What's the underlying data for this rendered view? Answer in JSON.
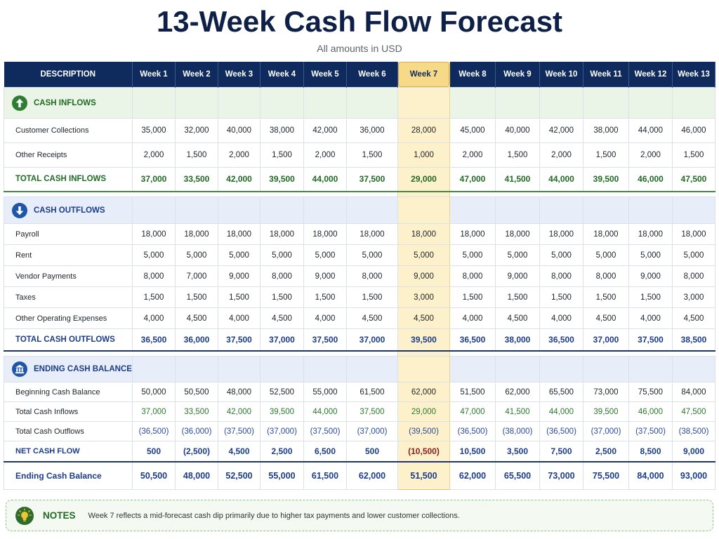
{
  "title": "13-Week Cash Flow Forecast",
  "subtitle": "All amounts in USD",
  "colors": {
    "title": "#0e2047",
    "header_bg": "#0f2a5c",
    "inflow": "#1f6b23",
    "outflow": "#1b3c8c",
    "inflow_section_bg": "#eaf4e7",
    "outflow_section_bg": "#e7eef9",
    "highlight": "#fcf1cb",
    "highlight_header": "#f6da88",
    "net_highlight": "#8b1d1d",
    "notes_border": "#8fc08a",
    "notes_bg": "#f4faf2"
  },
  "table": {
    "header": {
      "description": "DESCRIPTION",
      "weeks": [
        "Week 1",
        "Week 2",
        "Week 3",
        "Week 4",
        "Week 5",
        "Week 6",
        "Week 7",
        "Week 8",
        "Week 9",
        "Week 10",
        "Week 11",
        "Week 12",
        "Week 13"
      ]
    },
    "highlighted_week": "Week 7",
    "sections": [
      {
        "label": "CASH INFLOWS",
        "icon": "arrow-up-icon",
        "theme": "green",
        "rows": [
          {
            "label": "Customer Collections",
            "kind": "item",
            "values": [
              "35,000",
              "32,000",
              "40,000",
              "38,000",
              "42,000",
              "36,000",
              "28,000",
              "45,000",
              "40,000",
              "42,000",
              "38,000",
              "44,000",
              "46,000"
            ]
          },
          {
            "label": "Other Receipts",
            "kind": "item",
            "values": [
              "2,000",
              "1,500",
              "2,000",
              "1,500",
              "2,000",
              "1,500",
              "1,000",
              "2,000",
              "1,500",
              "2,000",
              "1,500",
              "2,000",
              "1,500"
            ]
          },
          {
            "label": "TOTAL CASH INFLOWS",
            "kind": "total",
            "values": [
              "37,000",
              "33,500",
              "42,000",
              "39,500",
              "44,000",
              "37,500",
              "29,000",
              "47,000",
              "41,500",
              "44,000",
              "39,500",
              "46,000",
              "47,500"
            ]
          }
        ]
      },
      {
        "label": "CASH OUTFLOWS",
        "icon": "arrow-down-icon",
        "theme": "blue",
        "rows": [
          {
            "label": "Payroll",
            "kind": "item",
            "values": [
              "18,000",
              "18,000",
              "18,000",
              "18,000",
              "18,000",
              "18,000",
              "18,000",
              "18,000",
              "18,000",
              "18,000",
              "18,000",
              "18,000",
              "18,000"
            ]
          },
          {
            "label": "Rent",
            "kind": "item",
            "values": [
              "5,000",
              "5,000",
              "5,000",
              "5,000",
              "5,000",
              "5,000",
              "5,000",
              "5,000",
              "5,000",
              "5,000",
              "5,000",
              "5,000",
              "5,000"
            ]
          },
          {
            "label": "Vendor Payments",
            "kind": "item",
            "values": [
              "8,000",
              "7,000",
              "9,000",
              "8,000",
              "9,000",
              "8,000",
              "9,000",
              "8,000",
              "9,000",
              "8,000",
              "8,000",
              "9,000",
              "8,000"
            ]
          },
          {
            "label": "Taxes",
            "kind": "item",
            "values": [
              "1,500",
              "1,500",
              "1,500",
              "1,500",
              "1,500",
              "1,500",
              "3,000",
              "1,500",
              "1,500",
              "1,500",
              "1,500",
              "1,500",
              "3,000"
            ]
          },
          {
            "label": "Other Operating Expenses",
            "kind": "item",
            "values": [
              "4,000",
              "4,500",
              "4,000",
              "4,500",
              "4,000",
              "4,500",
              "4,500",
              "4,000",
              "4,500",
              "4,000",
              "4,500",
              "4,000",
              "4,500"
            ]
          },
          {
            "label": "TOTAL CASH OUTFLOWS",
            "kind": "total",
            "values": [
              "36,500",
              "36,000",
              "37,500",
              "37,000",
              "37,500",
              "37,000",
              "39,500",
              "36,500",
              "38,000",
              "36,500",
              "37,000",
              "37,500",
              "38,500"
            ]
          }
        ]
      },
      {
        "label": "ENDING CASH BALANCE",
        "icon": "bank-icon",
        "theme": "blue",
        "rows": [
          {
            "label": "Beginning Cash Balance",
            "kind": "item",
            "values": [
              "50,000",
              "50,500",
              "48,000",
              "52,500",
              "55,000",
              "61,500",
              "62,000",
              "51,500",
              "62,000",
              "65,500",
              "73,000",
              "75,500",
              "84,000"
            ]
          },
          {
            "label": "Total Cash Inflows",
            "kind": "item",
            "value_tone": "green",
            "values": [
              "37,000",
              "33,500",
              "42,000",
              "39,500",
              "44,000",
              "37,500",
              "29,000",
              "47,000",
              "41,500",
              "44,000",
              "39,500",
              "46,000",
              "47,500"
            ]
          },
          {
            "label": "Total Cash Outflows",
            "kind": "item",
            "value_tone": "blue",
            "values": [
              "(36,500)",
              "(36,000)",
              "(37,500)",
              "(37,000)",
              "(37,500)",
              "(37,000)",
              "(39,500)",
              "(36,500)",
              "(38,000)",
              "(36,500)",
              "(37,000)",
              "(37,500)",
              "(38,500)"
            ]
          },
          {
            "label": "NET CASH FLOW",
            "kind": "net",
            "values": [
              "500",
              "(2,500)",
              "4,500",
              "2,500",
              "6,500",
              "500",
              "(10,500)",
              "10,500",
              "3,500",
              "7,500",
              "2,500",
              "8,500",
              "9,000"
            ]
          },
          {
            "label": "Ending Cash Balance",
            "kind": "ending",
            "values": [
              "50,500",
              "48,000",
              "52,500",
              "55,000",
              "61,500",
              "62,000",
              "51,500",
              "62,000",
              "65,500",
              "73,000",
              "75,500",
              "84,000",
              "93,000"
            ]
          }
        ]
      }
    ]
  },
  "notes": {
    "icon": "lightbulb-icon",
    "label": "NOTES",
    "text": "Week 7 reflects a mid-forecast cash dip primarily due to higher tax payments and lower customer collections."
  }
}
